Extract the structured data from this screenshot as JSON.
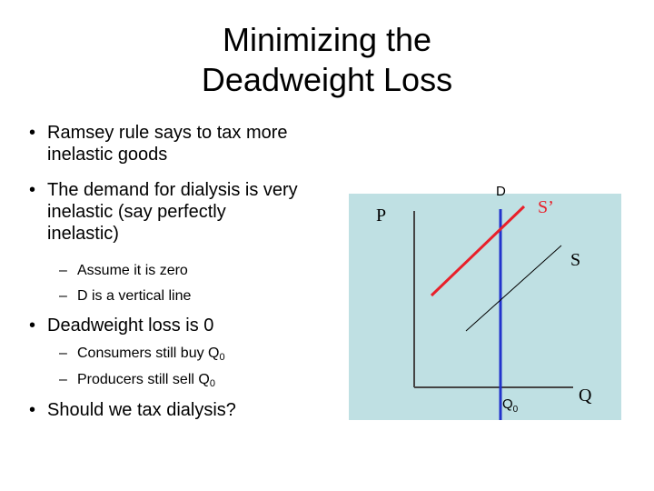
{
  "title": {
    "line1": "Minimizing the",
    "line2": "Deadweight Loss"
  },
  "bullets": {
    "b1_line1": "Ramsey rule says to tax more",
    "b1_line2": "inelastic goods",
    "b2_line1": "The demand for dialysis is very",
    "b2_line2": "inelastic (say perfectly",
    "b2_line3": "inelastic)",
    "sub1": "Assume it is zero",
    "sub2": "D is a vertical line",
    "b3": "Deadweight loss is 0",
    "sub3_text": "Consumers still buy Q",
    "sub3_sub": "0",
    "sub4_text": "Producers still sell Q",
    "sub4_sub": "0",
    "b4": "Should we tax dialysis?"
  },
  "diagram": {
    "background": "#bfe0e3",
    "y_axis_label": "P",
    "x_axis_label": "Q",
    "demand_label": "D",
    "supply_label": "S",
    "taxed_supply_label": "S’",
    "q0_label": "Q",
    "q0_sub": "0",
    "colors": {
      "demand": "#2233cc",
      "taxed_supply": "#e8202a",
      "supply": "#000000",
      "axes": "#444444"
    }
  }
}
